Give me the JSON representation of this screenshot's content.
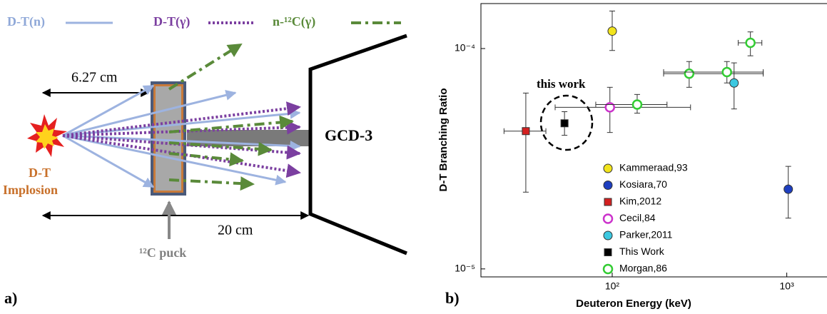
{
  "diagram": {
    "panel_label": "a)",
    "legend": [
      "D-T(n)",
      "D-T(γ)",
      "n-¹²C(γ)"
    ],
    "puck_distance": "6.27 cm",
    "detector_distance": "20 cm",
    "detector": "GCD-3",
    "source": [
      "D-T",
      "Implosion"
    ],
    "puck": "¹²C puck"
  },
  "chart_data": {
    "type": "scatter",
    "panel_label": "b)",
    "xlabel": "Deuteron Energy (keV)",
    "ylabel": "D-T Branching Ratio",
    "annotation": "this work",
    "xscale": "log",
    "yscale": "log",
    "xlim": [
      17.7,
      1700
    ],
    "ylim": [
      9.2e-06,
      0.00016
    ],
    "xticks": [
      {
        "value": 100,
        "label": "10²"
      },
      {
        "value": 1000,
        "label": "10³"
      }
    ],
    "yticks": [
      {
        "value": 1e-05,
        "label": "10⁻⁵"
      },
      {
        "value": 0.0001,
        "label": "10⁻⁴"
      }
    ],
    "legend_position": "lower right",
    "series": [
      {
        "name": "Kammeraad,93",
        "color": "#f2e41c",
        "marker": "circle",
        "filled": true,
        "x": [
          100
        ],
        "values": [
          0.00012
        ],
        "ylow": [
          9.8e-05
        ],
        "yhigh": [
          0.000148
        ]
      },
      {
        "name": "Kosiara,70",
        "color": "#1e3fc0",
        "marker": "circle",
        "filled": true,
        "x": [
          1020
        ],
        "values": [
          2.3e-05
        ],
        "ylow": [
          1.7e-05
        ],
        "yhigh": [
          2.92e-05
        ]
      },
      {
        "name": "Kim,2012",
        "color": "#d42020",
        "marker": "square",
        "filled": true,
        "x": [
          32
        ],
        "values": [
          4.22e-05
        ],
        "ylow": [
          2.23e-05
        ],
        "yhigh": [
          6.28e-05
        ],
        "xlow": [
          24
        ],
        "xhigh": [
          41.7
        ]
      },
      {
        "name": "Cecil,84",
        "color": "#cc33cc",
        "marker": "circle",
        "filled": false,
        "x": [
          97
        ],
        "values": [
          5.41e-05
        ],
        "ylow": [
          4.16e-05
        ],
        "yhigh": [
          6.67e-05
        ],
        "xlow": [
          47.1
        ],
        "xhigh": [
          281
        ]
      },
      {
        "name": "Parker,2011",
        "color": "#3cc8e0",
        "marker": "circle",
        "filled": true,
        "x": [
          499
        ],
        "values": [
          6.98e-05
        ],
        "ylow": [
          5.32e-05
        ],
        "yhigh": [
          8.61e-05
        ]
      },
      {
        "name": "This Work",
        "color": "#000000",
        "marker": "square",
        "filled": true,
        "x": [
          53.3
        ],
        "values": [
          4.58e-05
        ],
        "ylow": [
          4.04e-05
        ],
        "yhigh": [
          5.17e-05
        ]
      },
      {
        "name": "Morgan,86",
        "color": "#33cc33",
        "marker": "circle",
        "filled": false,
        "x": [
          139,
          276,
          454,
          619
        ],
        "values": [
          5.57e-05,
          7.69e-05,
          7.82e-05,
          0.0001062
        ],
        "ylow": [
          5.09e-05,
          6.67e-05,
          6.98e-05,
          9.27e-05
        ],
        "yhigh": [
          6.19e-05,
          8.73e-05,
          8.73e-05,
          0.000119
        ],
        "xlow": [
          80.5,
          197,
          197,
          527
        ],
        "xhigh": [
          206,
          733,
          733,
          720
        ]
      }
    ]
  }
}
